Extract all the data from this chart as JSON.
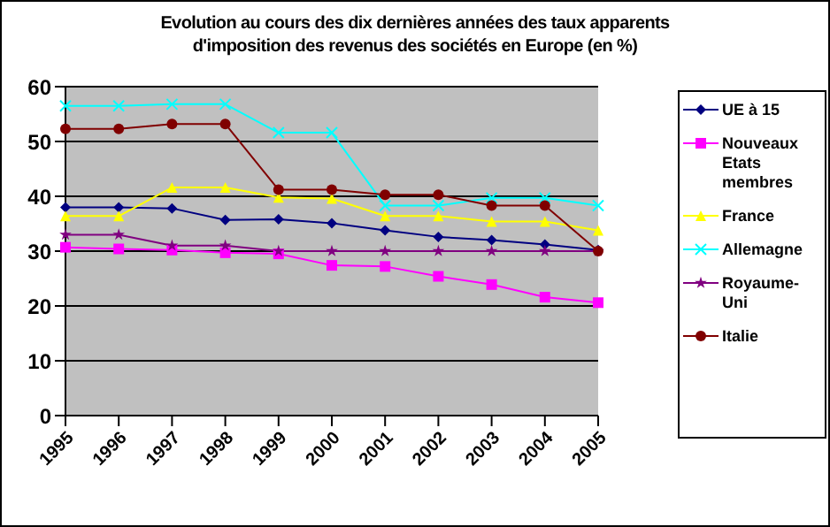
{
  "chart_data": {
    "type": "line",
    "title": "Evolution au cours des dix dernières années des taux apparents d'imposition des revenus des sociétés en Europe (en %)",
    "categories": [
      "1995",
      "1996",
      "1997",
      "1998",
      "1999",
      "2000",
      "2001",
      "2002",
      "2003",
      "2004",
      "2005"
    ],
    "series": [
      {
        "name": "UE à 15",
        "color": "#000080",
        "marker": "diamond",
        "values": [
          38,
          38,
          37.8,
          35.7,
          35.8,
          35.1,
          33.8,
          32.6,
          32,
          31.2,
          30.2
        ]
      },
      {
        "name": "Nouveaux Etats membres",
        "color": "#ff00ff",
        "marker": "square",
        "values": [
          30.7,
          30.4,
          30.2,
          29.7,
          29.5,
          27.4,
          27.2,
          25.4,
          23.9,
          21.6,
          20.6
        ]
      },
      {
        "name": "France",
        "color": "#ffff00",
        "marker": "triangle",
        "values": [
          36.4,
          36.4,
          41.6,
          41.6,
          39.8,
          39.6,
          36.4,
          36.4,
          35.4,
          35.4,
          33.8
        ]
      },
      {
        "name": "Allemagne",
        "color": "#00ffff",
        "marker": "cross",
        "values": [
          56.5,
          56.5,
          56.8,
          56.8,
          51.6,
          51.6,
          38.3,
          38.3,
          39.7,
          39.7,
          38.3
        ]
      },
      {
        "name": "Royaume-Uni",
        "color": "#800080",
        "marker": "star",
        "values": [
          33,
          33,
          31,
          31,
          30,
          30,
          30,
          30,
          30,
          30,
          30
        ]
      },
      {
        "name": "Italie",
        "color": "#800000",
        "marker": "circle",
        "values": [
          52.3,
          52.3,
          53.2,
          53.2,
          41.2,
          41.2,
          40.3,
          40.3,
          38.3,
          38.3,
          30
        ]
      }
    ],
    "ylim": [
      0,
      60
    ],
    "yticks": [
      0,
      10,
      20,
      30,
      40,
      50,
      60
    ],
    "grid": "y",
    "legend": "right"
  }
}
